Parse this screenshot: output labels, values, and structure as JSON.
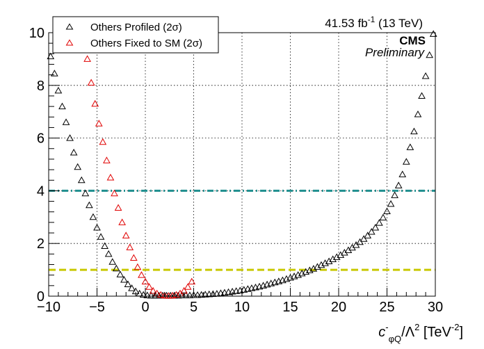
{
  "chart_data": {
    "type": "scatter",
    "xlabel": "c⁻φQ/Λ² [TeV⁻²]",
    "xlabel_parts": {
      "symbol": "c",
      "sup_minus": "-",
      "sub": "φQ",
      "over": "/Λ",
      "sq": "2",
      "unit_open": " [TeV",
      "unit_exp": "-2",
      "unit_close": "]"
    },
    "ylabel": "",
    "xlim": [
      -10,
      30
    ],
    "ylim": [
      0,
      10
    ],
    "xticks": [
      -10,
      -5,
      0,
      5,
      10,
      15,
      20,
      25,
      30
    ],
    "yticks": [
      0,
      2,
      4,
      6,
      8,
      10
    ],
    "grid": true,
    "legend_position": "top-left",
    "top_right_text": {
      "lumi": "41.53 fb",
      "lumi_exp": "-1",
      "energy": " (13 TeV)",
      "experiment": "CMS",
      "status": "Preliminary"
    },
    "reference_lines": [
      {
        "y": 4,
        "color": "#1f8f8f",
        "style": "dash-dot"
      },
      {
        "y": 1,
        "color": "#c8c800",
        "style": "dashed"
      }
    ],
    "series": [
      {
        "name": "Others Profiled (2σ)",
        "color": "#000000",
        "marker": "open-triangle",
        "x": [
          -9.8,
          -9.4,
          -9.0,
          -8.6,
          -8.2,
          -7.8,
          -7.4,
          -7.0,
          -6.6,
          -6.2,
          -5.8,
          -5.4,
          -5.0,
          -4.6,
          -4.2,
          -3.8,
          -3.4,
          -3.0,
          -2.6,
          -2.2,
          -1.8,
          -1.4,
          -1.0,
          -0.6,
          -0.2,
          0.2,
          0.6,
          1.0,
          1.4,
          1.8,
          2.2,
          2.6,
          3.0,
          3.4,
          3.8,
          4.2,
          4.6,
          5.0,
          5.4,
          5.8,
          6.2,
          6.6,
          7.0,
          7.4,
          7.8,
          8.2,
          8.6,
          9.0,
          9.4,
          9.8,
          10.2,
          10.6,
          11.0,
          11.4,
          11.8,
          12.2,
          12.6,
          13.0,
          13.4,
          13.8,
          14.2,
          14.6,
          15.0,
          15.4,
          15.8,
          16.2,
          16.6,
          17.0,
          17.4,
          17.8,
          18.2,
          18.6,
          19.0,
          19.4,
          19.8,
          20.2,
          20.6,
          21.0,
          21.4,
          21.8,
          22.2,
          22.6,
          23.0,
          23.4,
          23.8,
          24.2,
          24.6,
          25.0,
          25.4,
          25.8,
          26.2,
          26.6,
          27.0,
          27.4,
          27.8,
          28.2,
          28.6,
          29.0,
          29.4,
          29.8
        ],
        "y": [
          9.1,
          8.45,
          7.8,
          7.2,
          6.6,
          6.0,
          5.45,
          4.9,
          4.4,
          3.9,
          3.45,
          3.0,
          2.6,
          2.25,
          1.9,
          1.6,
          1.3,
          1.05,
          0.82,
          0.62,
          0.45,
          0.3,
          0.18,
          0.1,
          0.05,
          0.03,
          0.02,
          0.02,
          0.02,
          0.02,
          0.02,
          0.02,
          0.02,
          0.02,
          0.03,
          0.03,
          0.03,
          0.04,
          0.04,
          0.05,
          0.06,
          0.07,
          0.08,
          0.09,
          0.11,
          0.13,
          0.15,
          0.17,
          0.19,
          0.21,
          0.24,
          0.27,
          0.3,
          0.33,
          0.36,
          0.4,
          0.44,
          0.48,
          0.52,
          0.56,
          0.6,
          0.65,
          0.7,
          0.75,
          0.8,
          0.86,
          0.92,
          0.98,
          1.04,
          1.11,
          1.18,
          1.25,
          1.32,
          1.4,
          1.48,
          1.56,
          1.65,
          1.74,
          1.84,
          1.94,
          2.05,
          2.17,
          2.3,
          2.44,
          2.6,
          2.78,
          2.98,
          3.22,
          3.5,
          3.83,
          4.2,
          4.62,
          5.1,
          5.65,
          6.25,
          6.9,
          7.6,
          8.35,
          9.15,
          9.95
        ]
      },
      {
        "name": "Others Fixed to SM (2σ)",
        "color": "#e00000",
        "marker": "open-triangle",
        "x": [
          -6.0,
          -5.6,
          -5.2,
          -4.8,
          -4.4,
          -4.0,
          -3.6,
          -3.2,
          -2.8,
          -2.4,
          -2.0,
          -1.6,
          -1.2,
          -0.8,
          -0.4,
          0.0,
          0.4,
          0.8,
          1.2,
          1.6,
          2.0,
          2.4,
          2.8,
          3.2,
          3.6,
          4.0,
          4.4,
          4.8
        ],
        "y": [
          9.0,
          8.1,
          7.3,
          6.55,
          5.85,
          5.15,
          4.5,
          3.9,
          3.35,
          2.8,
          2.3,
          1.85,
          1.45,
          1.1,
          0.8,
          0.55,
          0.35,
          0.2,
          0.1,
          0.05,
          0.02,
          0.01,
          0.02,
          0.05,
          0.1,
          0.2,
          0.35,
          0.55
        ]
      }
    ]
  }
}
